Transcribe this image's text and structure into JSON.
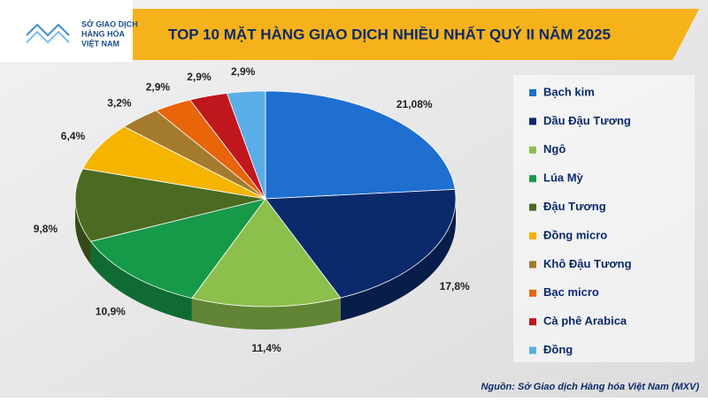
{
  "header": {
    "logo_lines": [
      "SỞ GIAO DỊCH",
      "HÀNG HÓA",
      "VIỆT NAM"
    ]
  },
  "chart_data": {
    "type": "pie",
    "title": "TOP 10 MẶT HÀNG GIAO DỊCH NHIỀU NHẤT QUÝ II NĂM 2025",
    "series": [
      {
        "name": "Bạch kim",
        "color": "#1f6fd0",
        "values": [
          21.08
        ],
        "value_labels": [
          "21,08%"
        ]
      },
      {
        "name": "Dầu Đậu Tương",
        "color": "#0b2a6b",
        "values": [
          17.8
        ],
        "value_labels": [
          "17,8%"
        ]
      },
      {
        "name": "Ngô",
        "color": "#8cbf4c",
        "values": [
          11.4
        ],
        "value_labels": [
          "11,4%"
        ]
      },
      {
        "name": "Lúa Mỳ",
        "color": "#17994a",
        "values": [
          10.9
        ],
        "value_labels": [
          "10,9%"
        ]
      },
      {
        "name": "Đậu Tương",
        "color": "#4b6a22",
        "values": [
          9.8
        ],
        "value_labels": [
          "9,8%"
        ]
      },
      {
        "name": "Đồng micro",
        "color": "#f4b400",
        "values": [
          6.4
        ],
        "value_labels": [
          "6,4%"
        ]
      },
      {
        "name": "Khô Đậu Tương",
        "color": "#a47b2c",
        "values": [
          3.2
        ],
        "value_labels": [
          "3,2%"
        ]
      },
      {
        "name": "Bạc micro",
        "color": "#e8650a",
        "values": [
          2.9
        ],
        "value_labels": [
          "2,9%"
        ]
      },
      {
        "name": "Cà phê Arabica",
        "color": "#c0161e",
        "values": [
          2.9
        ],
        "value_labels": [
          "2,9%"
        ]
      },
      {
        "name": "Đồng",
        "color": "#5aaee8",
        "values": [
          2.9
        ],
        "value_labels": [
          "2,9%"
        ]
      }
    ],
    "source": "Nguồn: Sở Giao dịch Hàng hóa Việt Nam (MXV)"
  }
}
